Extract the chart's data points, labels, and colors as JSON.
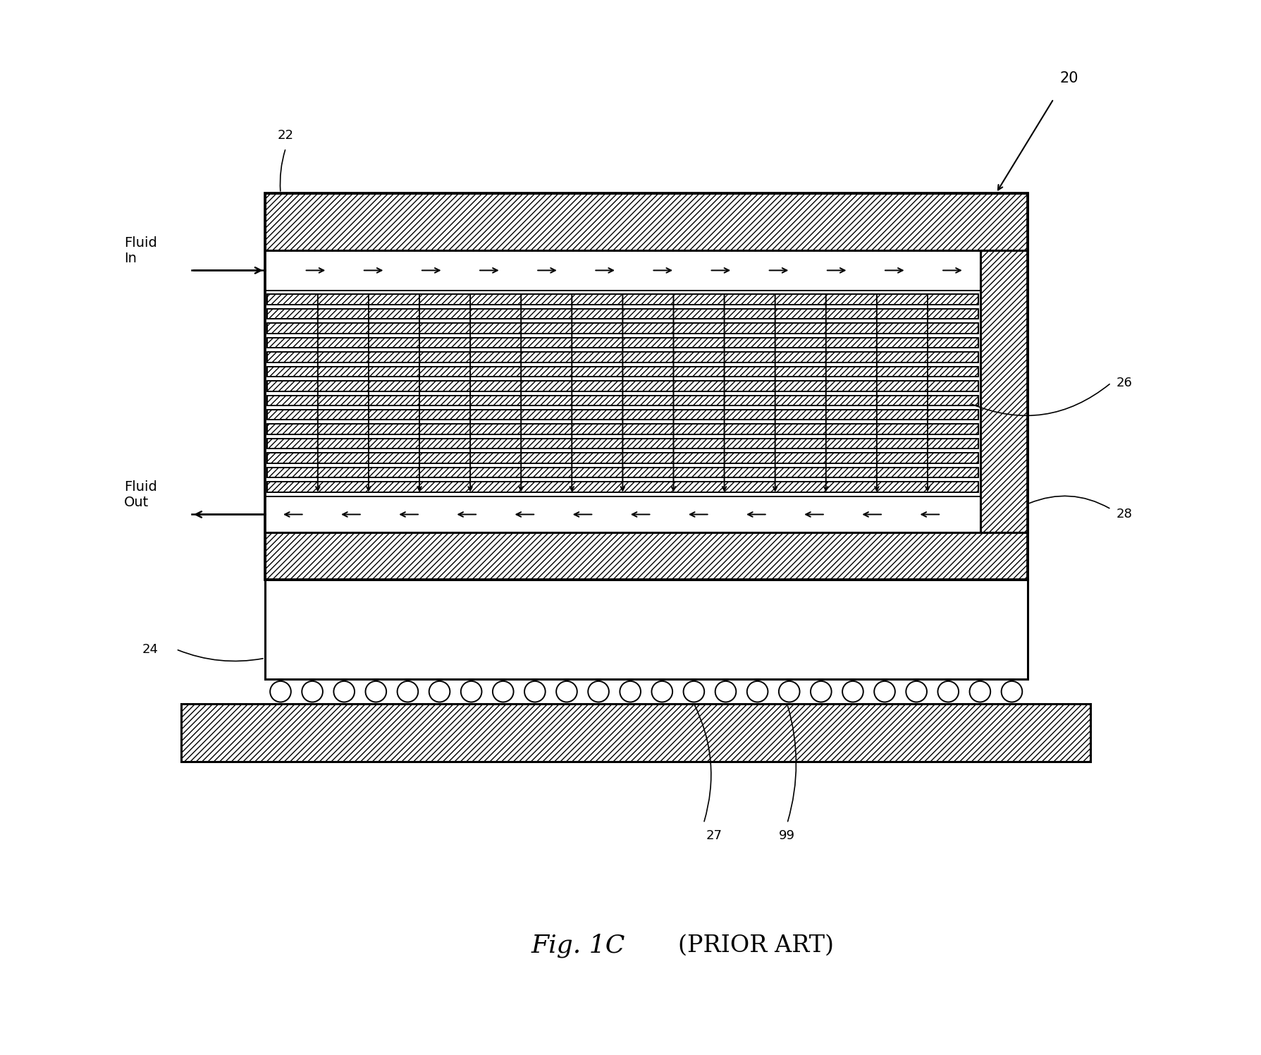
{
  "fig_width": 17.89,
  "fig_height": 14.96,
  "bg_color": "#ffffff",
  "num_fins": 14,
  "label_20": "20",
  "label_22": "22",
  "label_24": "24",
  "label_26": "26",
  "label_27": "27",
  "label_28": "28",
  "label_99": "99",
  "fluid_in": "Fluid\nIn",
  "fluid_out": "Fluid\nOut",
  "fig1c_text": "Fig. 1C",
  "prior_art_text": "(PRIOR ART)"
}
